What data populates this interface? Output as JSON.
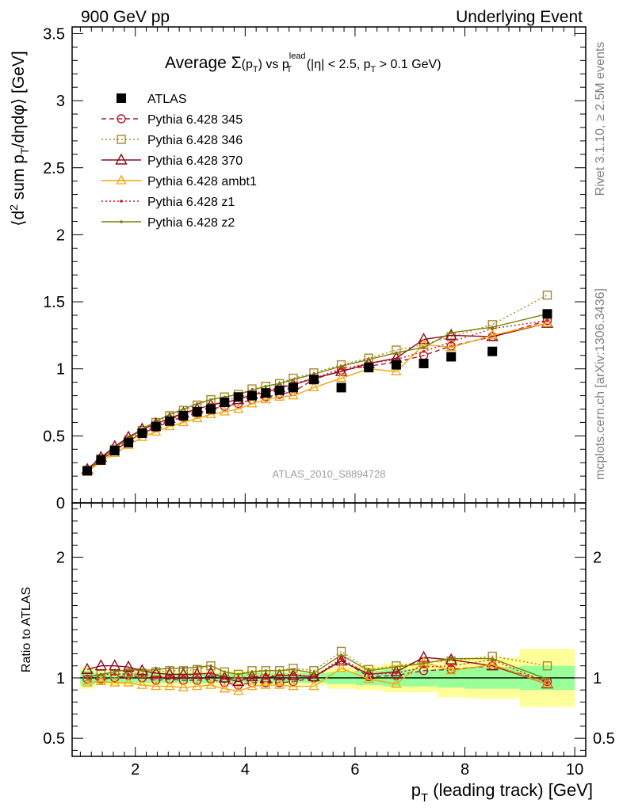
{
  "header": {
    "left": "900 GeV pp",
    "right": "Underlying Event"
  },
  "title": {
    "a": "Average ",
    "sigma": "Σ",
    "b": "(p",
    "b_sub": "T",
    "c": ") vs p",
    "c_sup": "lead",
    "c_sub": "T",
    "d": " (|η| < 2.5, p",
    "d_sub": "T",
    "e": " > 0.1 GeV)"
  },
  "ylabel_main": {
    "a": "⟨d",
    "a_sup": "2",
    "b": " sum p",
    "b_sub": "T",
    "c": "/dηdφ⟩ [GeV]"
  },
  "ylabel_ratio": "Ratio to ATLAS",
  "xlabel": {
    "a": "p",
    "a_sub": "T",
    "b": " (leading track) [GeV]"
  },
  "side_text_top": "Rivet 3.1.10, ≥ 2.5M events",
  "side_text_bottom": "mcplots.cern.ch [arXiv:1306.3436]",
  "watermark": "ATLAS_2010_S8894728",
  "colors": {
    "atlas": "#000000",
    "p345": "#b2182b",
    "p346": "#a6862a",
    "p370": "#8b0a1e",
    "ambt1": "#f5a30a",
    "z1": "#d7191c",
    "z2": "#7f7f00",
    "band_inner": "#99ff99",
    "band_outer": "#ffff99"
  },
  "chart_data": [
    {
      "type": "line",
      "panel": "main",
      "xlim": [
        0.85,
        10.2
      ],
      "ylim": [
        0,
        3.55
      ],
      "yticks": [
        0,
        0.5,
        1,
        1.5,
        2,
        2.5,
        3,
        3.5
      ],
      "ytick_labels": [
        "0",
        "0.5",
        "1",
        "1.5",
        "2",
        "2.5",
        "3",
        "3.5"
      ],
      "x": [
        1.125,
        1.375,
        1.625,
        1.875,
        2.125,
        2.375,
        2.625,
        2.875,
        3.125,
        3.375,
        3.625,
        3.875,
        4.125,
        4.375,
        4.625,
        4.875,
        5.25,
        5.75,
        6.25,
        6.75,
        7.25,
        7.75,
        8.5,
        9.5
      ],
      "series": [
        {
          "name": "ATLAS",
          "key": "atlas",
          "marker": "square-filled",
          "line": "none",
          "values": [
            0.24,
            0.32,
            0.39,
            0.45,
            0.52,
            0.57,
            0.61,
            0.65,
            0.68,
            0.7,
            0.75,
            0.79,
            0.8,
            0.82,
            0.84,
            0.86,
            0.92,
            0.86,
            1.01,
            1.03,
            1.04,
            1.09,
            1.13,
            1.41
          ]
        },
        {
          "name": "Pythia 6.428 345",
          "key": "p345",
          "marker": "circle-open",
          "line": "dashed",
          "values": [
            0.24,
            0.32,
            0.39,
            0.46,
            0.52,
            0.56,
            0.61,
            0.64,
            0.67,
            0.7,
            0.72,
            0.74,
            0.77,
            0.79,
            0.81,
            0.83,
            0.92,
            0.99,
            1.02,
            1.05,
            1.1,
            1.17,
            1.24,
            1.36
          ]
        },
        {
          "name": "Pythia 6.428 346",
          "key": "p346",
          "marker": "square-open",
          "line": "dotted",
          "values": [
            0.24,
            0.33,
            0.4,
            0.47,
            0.54,
            0.6,
            0.65,
            0.69,
            0.73,
            0.77,
            0.79,
            0.81,
            0.85,
            0.87,
            0.89,
            0.93,
            0.97,
            1.03,
            1.08,
            1.14,
            1.18,
            1.24,
            1.33,
            1.55
          ]
        },
        {
          "name": "Pythia 6.428 370",
          "key": "p370",
          "marker": "triangle-open",
          "line": "solid",
          "values": [
            0.25,
            0.34,
            0.42,
            0.49,
            0.55,
            0.59,
            0.63,
            0.67,
            0.7,
            0.73,
            0.75,
            0.77,
            0.81,
            0.82,
            0.86,
            0.88,
            0.93,
            0.98,
            1.04,
            1.08,
            1.22,
            1.25,
            1.24,
            1.34
          ]
        },
        {
          "name": "Pythia 6.428 ambt1",
          "key": "ambt1",
          "marker": "triangle-open-small",
          "line": "solid",
          "values": [
            0.23,
            0.31,
            0.37,
            0.43,
            0.49,
            0.53,
            0.57,
            0.6,
            0.63,
            0.66,
            0.68,
            0.7,
            0.74,
            0.77,
            0.79,
            0.8,
            0.86,
            0.93,
            1.0,
            0.98,
            1.18,
            1.16,
            1.25,
            1.34
          ]
        },
        {
          "name": "Pythia 6.428 z1",
          "key": "z1",
          "marker": "dot",
          "line": "dotted",
          "values": [
            0.24,
            0.33,
            0.4,
            0.46,
            0.53,
            0.57,
            0.62,
            0.66,
            0.7,
            0.73,
            0.76,
            0.79,
            0.81,
            0.84,
            0.86,
            0.89,
            0.93,
            1.0,
            1.04,
            1.07,
            1.13,
            1.2,
            1.3,
            1.36
          ]
        },
        {
          "name": "Pythia 6.428 z2",
          "key": "z2",
          "marker": "dot",
          "line": "solid",
          "values": [
            0.24,
            0.33,
            0.41,
            0.48,
            0.55,
            0.61,
            0.66,
            0.7,
            0.74,
            0.77,
            0.79,
            0.81,
            0.84,
            0.87,
            0.89,
            0.92,
            0.96,
            1.02,
            1.07,
            1.12,
            1.16,
            1.27,
            1.31,
            1.41
          ]
        }
      ]
    },
    {
      "type": "line",
      "panel": "ratio",
      "ylabel": "Ratio to ATLAS",
      "xlabel": "p_T (leading track) [GeV]",
      "xlim": [
        0.85,
        10.2
      ],
      "ylim": [
        0.35,
        2.45
      ],
      "xticks": [
        2,
        4,
        6,
        8,
        10
      ],
      "xtick_labels": [
        "2",
        "4",
        "6",
        "8",
        "10"
      ],
      "yticks": [
        0.5,
        1,
        2
      ],
      "ytick_labels": [
        "0.5",
        "1",
        "2"
      ],
      "x": [
        1.125,
        1.375,
        1.625,
        1.875,
        2.125,
        2.375,
        2.625,
        2.875,
        3.125,
        3.375,
        3.625,
        3.875,
        4.125,
        4.375,
        4.625,
        4.875,
        5.25,
        5.75,
        6.25,
        6.75,
        7.25,
        7.75,
        8.5,
        9.5
      ],
      "bins": [
        [
          1.0,
          1.25
        ],
        [
          1.25,
          1.5
        ],
        [
          1.5,
          1.75
        ],
        [
          1.75,
          2.0
        ],
        [
          2.0,
          2.25
        ],
        [
          2.25,
          2.5
        ],
        [
          2.5,
          2.75
        ],
        [
          2.75,
          3.0
        ],
        [
          3.0,
          3.25
        ],
        [
          3.25,
          3.5
        ],
        [
          3.5,
          3.75
        ],
        [
          3.75,
          4.0
        ],
        [
          4.0,
          4.25
        ],
        [
          4.25,
          4.5
        ],
        [
          4.5,
          4.75
        ],
        [
          4.75,
          5.0
        ],
        [
          5.0,
          5.5
        ],
        [
          5.5,
          6.0
        ],
        [
          6.0,
          6.5
        ],
        [
          6.5,
          7.0
        ],
        [
          7.0,
          7.5
        ],
        [
          7.5,
          8.0
        ],
        [
          8.0,
          9.0
        ],
        [
          9.0,
          10.0
        ]
      ],
      "band_inner_halfwidth": [
        0.06,
        0.04,
        0.04,
        0.04,
        0.04,
        0.04,
        0.04,
        0.04,
        0.04,
        0.04,
        0.04,
        0.04,
        0.04,
        0.04,
        0.04,
        0.04,
        0.04,
        0.05,
        0.06,
        0.07,
        0.07,
        0.08,
        0.09,
        0.1
      ],
      "band_outer_halfwidth": [
        0.09,
        0.06,
        0.06,
        0.06,
        0.06,
        0.06,
        0.06,
        0.06,
        0.06,
        0.06,
        0.06,
        0.06,
        0.06,
        0.06,
        0.06,
        0.06,
        0.06,
        0.09,
        0.1,
        0.12,
        0.12,
        0.16,
        0.17,
        0.24
      ],
      "series": [
        {
          "name": "Pythia 6.428 345",
          "key": "p345",
          "marker": "circle-open",
          "line": "dashed",
          "values": [
            0.99,
            0.99,
            1.0,
            1.02,
            1.0,
            0.98,
            0.99,
            0.98,
            0.98,
            0.99,
            0.96,
            0.94,
            0.96,
            0.96,
            0.96,
            0.97,
            1.0,
            1.15,
            1.01,
            1.02,
            1.06,
            1.07,
            1.1,
            0.97
          ]
        },
        {
          "name": "Pythia 6.428 346",
          "key": "p346",
          "marker": "square-open",
          "line": "dotted",
          "values": [
            1.01,
            1.03,
            1.03,
            1.04,
            1.04,
            1.05,
            1.06,
            1.06,
            1.07,
            1.1,
            1.05,
            1.03,
            1.06,
            1.06,
            1.06,
            1.08,
            1.06,
            1.22,
            1.07,
            1.1,
            1.13,
            1.14,
            1.18,
            1.1
          ]
        },
        {
          "name": "Pythia 6.428 370",
          "key": "p370",
          "marker": "triangle-open",
          "line": "solid",
          "values": [
            1.07,
            1.1,
            1.1,
            1.09,
            1.06,
            1.04,
            1.03,
            1.03,
            1.03,
            1.04,
            1.0,
            0.97,
            1.01,
            1.0,
            1.02,
            1.02,
            1.01,
            1.14,
            1.03,
            1.05,
            1.17,
            1.15,
            1.1,
            0.95
          ]
        },
        {
          "name": "Pythia 6.428 ambt1",
          "key": "ambt1",
          "marker": "triangle-open-small",
          "line": "solid",
          "values": [
            0.96,
            0.97,
            0.96,
            0.96,
            0.94,
            0.93,
            0.93,
            0.92,
            0.93,
            0.94,
            0.91,
            0.89,
            0.93,
            0.94,
            0.94,
            0.93,
            0.93,
            1.08,
            0.99,
            0.95,
            1.13,
            1.06,
            1.11,
            0.95
          ]
        },
        {
          "name": "Pythia 6.428 z1",
          "key": "z1",
          "marker": "dot",
          "line": "dotted",
          "values": [
            1.0,
            1.03,
            1.03,
            1.03,
            1.02,
            1.0,
            1.01,
            1.02,
            1.03,
            1.04,
            1.01,
            1.0,
            1.01,
            1.02,
            1.02,
            1.03,
            1.01,
            1.16,
            1.03,
            1.04,
            1.09,
            1.1,
            1.15,
            0.96
          ]
        },
        {
          "name": "Pythia 6.428 z2",
          "key": "z2",
          "marker": "dot",
          "line": "solid",
          "values": [
            1.01,
            1.03,
            1.05,
            1.07,
            1.06,
            1.07,
            1.08,
            1.08,
            1.09,
            1.1,
            1.05,
            1.03,
            1.05,
            1.06,
            1.06,
            1.07,
            1.04,
            1.19,
            1.06,
            1.09,
            1.12,
            1.16,
            1.16,
            0.99
          ]
        }
      ]
    }
  ]
}
